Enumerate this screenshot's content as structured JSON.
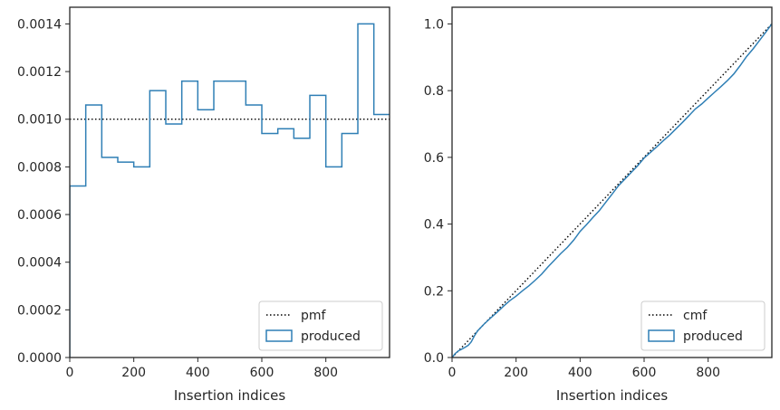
{
  "chart_data": [
    {
      "type": "step",
      "xlabel": "Insertion indices",
      "ylabel": "",
      "xlim": [
        0,
        999
      ],
      "ylim": [
        0,
        0.00147
      ],
      "xticks": [
        0,
        200,
        400,
        600,
        800
      ],
      "xtick_labels": [
        "0",
        "200",
        "400",
        "600",
        "800"
      ],
      "yticks": [
        0,
        0.0002,
        0.0004,
        0.0006,
        0.0008,
        0.001,
        0.0012,
        0.0014
      ],
      "ytick_labels": [
        "0.0000",
        "0.0002",
        "0.0004",
        "0.0006",
        "0.0008",
        "0.0010",
        "0.0012",
        "0.0014"
      ],
      "legend_position": "lower-right",
      "series": [
        {
          "name": "pmf",
          "kind": "reference-line",
          "style": "dotted",
          "color": "#000000",
          "y": 0.001
        },
        {
          "name": "produced",
          "kind": "histogram-step",
          "color": "#2f7fb5",
          "bin_edges": [
            0,
            50,
            100,
            150,
            200,
            250,
            300,
            350,
            400,
            450,
            500,
            550,
            600,
            650,
            700,
            750,
            800,
            850,
            900,
            950,
            1000
          ],
          "values": [
            0.00072,
            0.00106,
            0.00084,
            0.00082,
            0.0008,
            0.00112,
            0.00098,
            0.00116,
            0.00104,
            0.00116,
            0.00116,
            0.00106,
            0.00094,
            0.00096,
            0.00092,
            0.0011,
            0.0008,
            0.00094,
            0.0014,
            0.00102
          ]
        }
      ]
    },
    {
      "type": "step",
      "xlabel": "Insertion indices",
      "ylabel": "",
      "xlim": [
        0,
        999
      ],
      "ylim": [
        0,
        1.05
      ],
      "xticks": [
        0,
        200,
        400,
        600,
        800
      ],
      "xtick_labels": [
        "0",
        "200",
        "400",
        "600",
        "800"
      ],
      "yticks": [
        0,
        0.2,
        0.4,
        0.6,
        0.8,
        1.0
      ],
      "ytick_labels": [
        "0.0",
        "0.2",
        "0.4",
        "0.6",
        "0.8",
        "1.0"
      ],
      "legend_position": "lower-right",
      "series": [
        {
          "name": "cmf",
          "kind": "line",
          "style": "dotted",
          "color": "#000000",
          "x": [
            0,
            999
          ],
          "y": [
            0,
            1.0
          ]
        },
        {
          "name": "produced",
          "kind": "cumulative-step",
          "color": "#2f7fb5",
          "x": [
            0,
            10,
            20,
            30,
            40,
            50,
            60,
            70,
            80,
            100,
            120,
            140,
            160,
            180,
            200,
            220,
            240,
            260,
            280,
            300,
            320,
            340,
            360,
            380,
            400,
            420,
            440,
            460,
            480,
            500,
            520,
            540,
            560,
            580,
            600,
            620,
            640,
            660,
            680,
            700,
            720,
            740,
            760,
            780,
            800,
            820,
            840,
            860,
            880,
            900,
            920,
            940,
            960,
            980,
            999
          ],
          "y": [
            0,
            0.012,
            0.02,
            0.025,
            0.03,
            0.036,
            0.047,
            0.065,
            0.08,
            0.1,
            0.118,
            0.135,
            0.153,
            0.17,
            0.184,
            0.2,
            0.215,
            0.232,
            0.25,
            0.272,
            0.292,
            0.312,
            0.33,
            0.352,
            0.378,
            0.398,
            0.42,
            0.44,
            0.465,
            0.49,
            0.515,
            0.535,
            0.555,
            0.575,
            0.598,
            0.615,
            0.632,
            0.65,
            0.667,
            0.686,
            0.705,
            0.725,
            0.745,
            0.76,
            0.778,
            0.795,
            0.812,
            0.83,
            0.85,
            0.875,
            0.902,
            0.925,
            0.95,
            0.975,
            1.0
          ]
        }
      ]
    }
  ]
}
